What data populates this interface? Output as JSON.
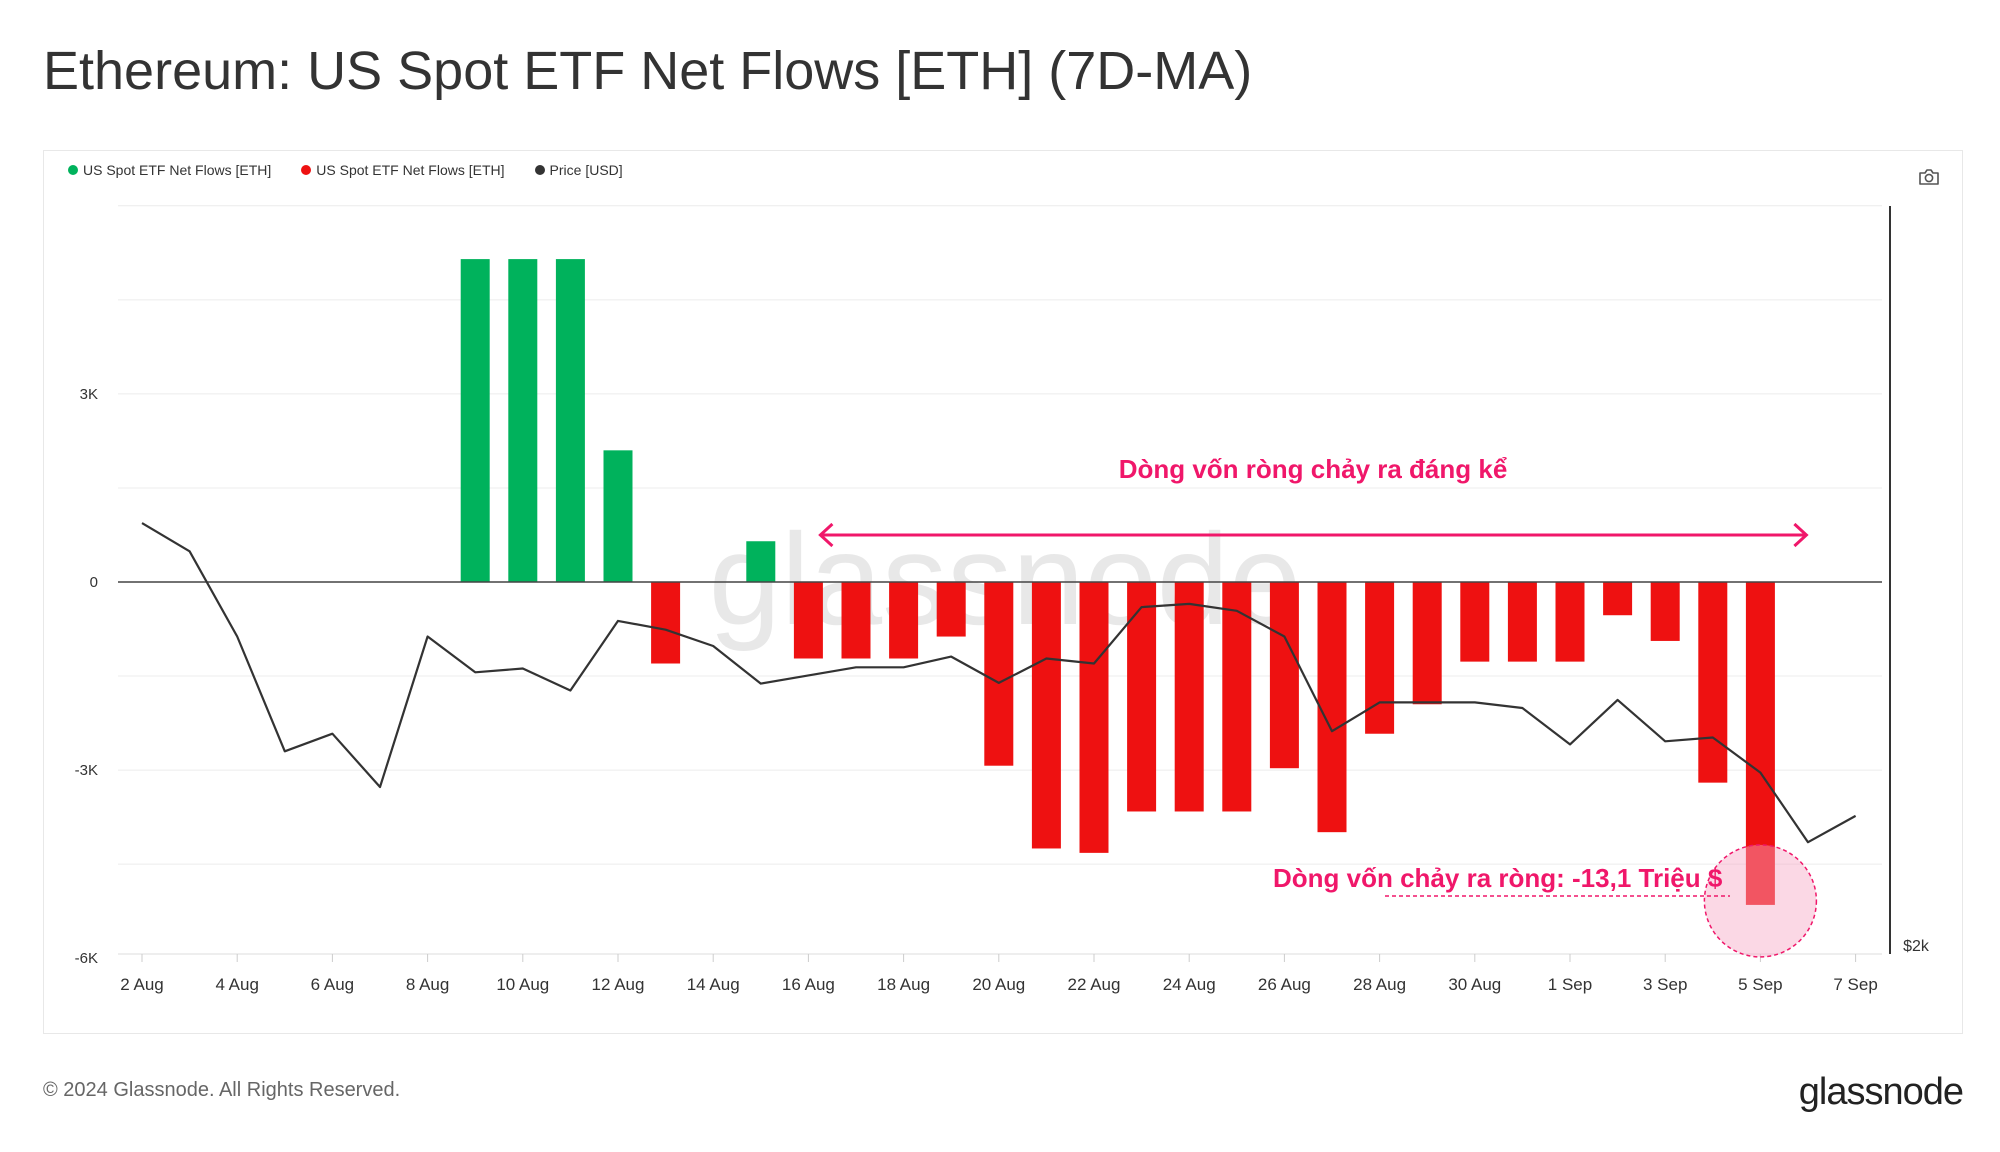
{
  "title": "Ethereum: US Spot ETF Net Flows [ETH] (7D-MA)",
  "legend": [
    {
      "label": "US Spot ETF Net Flows [ETH]",
      "color": "#00b25c"
    },
    {
      "label": "US Spot ETF Net Flows [ETH]",
      "color": "#ee1111"
    },
    {
      "label": "Price [USD]",
      "color": "#333333"
    }
  ],
  "watermark": "glassnode",
  "annotations": {
    "range_label": "Dòng vốn ròng chảy ra đáng kể",
    "callout_label": "Dòng vốn chảy ra ròng: -13,1 Triệu $",
    "color": "#f0176a"
  },
  "footer": {
    "copyright": "© 2024 Glassnode. All Rights Reserved.",
    "brand": "glassnode"
  },
  "chart_data": {
    "type": "bar",
    "x_tick_labels": [
      "2 Aug",
      "4 Aug",
      "6 Aug",
      "8 Aug",
      "10 Aug",
      "12 Aug",
      "14 Aug",
      "16 Aug",
      "18 Aug",
      "20 Aug",
      "22 Aug",
      "24 Aug",
      "26 Aug",
      "28 Aug",
      "30 Aug",
      "1 Sep",
      "3 Sep",
      "5 Sep",
      "7 Sep"
    ],
    "y_ticks": [
      {
        "value": 3000,
        "label": "3K"
      },
      {
        "value": 0,
        "label": "0"
      },
      {
        "value": -3000,
        "label": "-3K"
      },
      {
        "value": -6000,
        "label": "-6K"
      }
    ],
    "ylim": [
      -6000,
      6000
    ],
    "right_axis_label": "$2k",
    "grid": true,
    "positive_color": "#00b25c",
    "negative_color": "#ee1111",
    "price_color": "#333333",
    "flows": [
      {
        "date": "9 Aug",
        "value": 5150
      },
      {
        "date": "10 Aug",
        "value": 5150
      },
      {
        "date": "11 Aug",
        "value": 5150
      },
      {
        "date": "12 Aug",
        "value": 2100
      },
      {
        "date": "13 Aug",
        "value": -1300
      },
      {
        "date": "15 Aug",
        "value": 650
      },
      {
        "date": "16 Aug",
        "value": -1220
      },
      {
        "date": "17 Aug",
        "value": -1220
      },
      {
        "date": "18 Aug",
        "value": -1220
      },
      {
        "date": "19 Aug",
        "value": -870
      },
      {
        "date": "20 Aug",
        "value": -2930
      },
      {
        "date": "21 Aug",
        "value": -4250
      },
      {
        "date": "22 Aug",
        "value": -4320
      },
      {
        "date": "23 Aug",
        "value": -3660
      },
      {
        "date": "24 Aug",
        "value": -3660
      },
      {
        "date": "25 Aug",
        "value": -3660
      },
      {
        "date": "26 Aug",
        "value": -2970
      },
      {
        "date": "27 Aug",
        "value": -3990
      },
      {
        "date": "28 Aug",
        "value": -2420
      },
      {
        "date": "29 Aug",
        "value": -1950
      },
      {
        "date": "30 Aug",
        "value": -1270
      },
      {
        "date": "31 Aug",
        "value": -1270
      },
      {
        "date": "1 Sep",
        "value": -1270
      },
      {
        "date": "2 Sep",
        "value": -530
      },
      {
        "date": "3 Sep",
        "value": -940
      },
      {
        "date": "4 Sep",
        "value": -3200
      },
      {
        "date": "5 Sep",
        "value": -5150
      }
    ],
    "price_series": {
      "name": "Price [USD]",
      "points": [
        {
          "date": "2 Aug",
          "value": 940
        },
        {
          "date": "3 Aug",
          "value": 490
        },
        {
          "date": "4 Aug",
          "value": -870
        },
        {
          "date": "5 Aug",
          "value": -2700
        },
        {
          "date": "6 Aug",
          "value": -2420
        },
        {
          "date": "7 Aug",
          "value": -3270
        },
        {
          "date": "8 Aug",
          "value": -870
        },
        {
          "date": "9 Aug",
          "value": -1440
        },
        {
          "date": "10 Aug",
          "value": -1380
        },
        {
          "date": "11 Aug",
          "value": -1730
        },
        {
          "date": "12 Aug",
          "value": -620
        },
        {
          "date": "13 Aug",
          "value": -760
        },
        {
          "date": "14 Aug",
          "value": -1020
        },
        {
          "date": "15 Aug",
          "value": -1620
        },
        {
          "date": "16 Aug",
          "value": -1490
        },
        {
          "date": "17 Aug",
          "value": -1360
        },
        {
          "date": "18 Aug",
          "value": -1360
        },
        {
          "date": "19 Aug",
          "value": -1190
        },
        {
          "date": "20 Aug",
          "value": -1610
        },
        {
          "date": "21 Aug",
          "value": -1220
        },
        {
          "date": "22 Aug",
          "value": -1300
        },
        {
          "date": "23 Aug",
          "value": -400
        },
        {
          "date": "24 Aug",
          "value": -350
        },
        {
          "date": "25 Aug",
          "value": -460
        },
        {
          "date": "26 Aug",
          "value": -870
        },
        {
          "date": "27 Aug",
          "value": -2380
        },
        {
          "date": "28 Aug",
          "value": -1920
        },
        {
          "date": "29 Aug",
          "value": -1920
        },
        {
          "date": "30 Aug",
          "value": -1920
        },
        {
          "date": "31 Aug",
          "value": -2010
        },
        {
          "date": "1 Sep",
          "value": -2590
        },
        {
          "date": "2 Sep",
          "value": -1880
        },
        {
          "date": "3 Sep",
          "value": -2540
        },
        {
          "date": "4 Sep",
          "value": -2480
        },
        {
          "date": "5 Sep",
          "value": -3040
        },
        {
          "date": "6 Sep",
          "value": -4150
        },
        {
          "date": "7 Sep",
          "value": -3730
        }
      ]
    },
    "highlight": {
      "date": "5 Sep"
    },
    "range_arrow": {
      "from": "16 Aug",
      "to": "5 Sep",
      "value": 590
    }
  }
}
